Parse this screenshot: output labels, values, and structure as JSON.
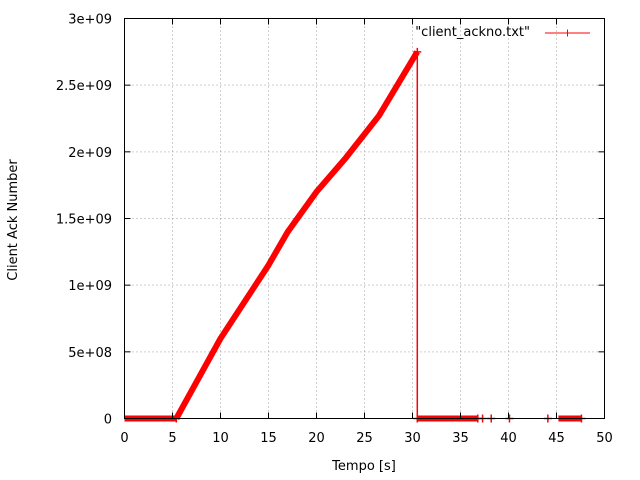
{
  "chart_data": {
    "type": "line",
    "title": "",
    "xlabel": "Tempo [s]",
    "ylabel": "Client Ack Number",
    "xlim": [
      0,
      50
    ],
    "ylim": [
      0,
      3000000000
    ],
    "x_ticks": [
      0,
      5,
      10,
      15,
      20,
      25,
      30,
      35,
      40,
      45,
      50
    ],
    "x_tick_labels": [
      "0",
      "5",
      "10",
      "15",
      "20",
      "25",
      "30",
      "35",
      "40",
      "45",
      "50"
    ],
    "y_ticks": [
      0,
      500000000,
      1000000000,
      1500000000,
      2000000000,
      2500000000,
      3000000000
    ],
    "y_tick_labels": [
      "0",
      "5e+08",
      "1e+09",
      "1.5e+09",
      "2e+09",
      "2.5e+09",
      "3e+09"
    ],
    "grid": true,
    "legend_position": "top-right",
    "series": [
      {
        "name": "\"client_ackno.txt\"",
        "color": "#ff0000",
        "marker": "plus",
        "segments": [
          {
            "x": [
              0,
              5.4
            ],
            "y": [
              0,
              0
            ]
          },
          {
            "x": [
              5.4,
              10,
              15,
              17,
              20,
              23,
              26.5,
              30.5
            ],
            "y": [
              0,
              600000000,
              1150000000,
              1400000000,
              1700000000,
              1950000000,
              2270000000,
              2750000000
            ]
          },
          {
            "x": [
              30.5,
              30.5
            ],
            "y": [
              2750000000,
              0
            ]
          },
          {
            "x": [
              30.5,
              36.8
            ],
            "y": [
              0,
              0
            ]
          },
          {
            "x": [
              45.2,
              47.6
            ],
            "y": [
              0,
              0
            ]
          }
        ],
        "isolated_points": {
          "x": [
            37.3,
            38.2,
            40.1,
            44.1
          ],
          "y": [
            0,
            0,
            0,
            0
          ]
        }
      }
    ]
  }
}
